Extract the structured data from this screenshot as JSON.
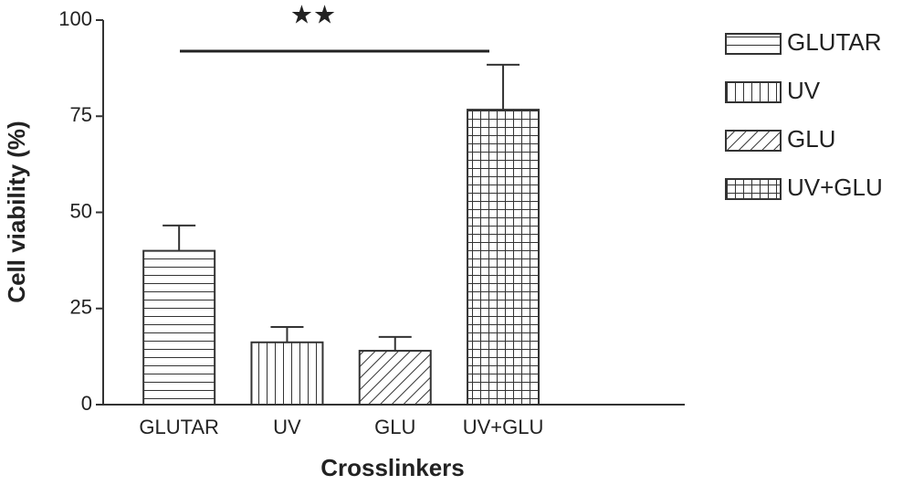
{
  "chart_data": {
    "type": "bar",
    "xlabel": "Crosslinkers",
    "ylabel": "Cell viability (%)",
    "categories": [
      "GLUTAR",
      "UV",
      "GLU",
      "UV+GLU"
    ],
    "values": [
      40,
      16.2,
      14,
      76.7
    ],
    "errors": [
      6.6,
      4,
      3.6,
      11.7
    ],
    "patterns": [
      "horizontal",
      "vertical",
      "diagonal",
      "grid"
    ],
    "color": "#333333",
    "ylim": [
      0,
      100
    ],
    "yticks": [
      0,
      25,
      50,
      75,
      100
    ],
    "annotation": "★★",
    "legend": "right"
  }
}
